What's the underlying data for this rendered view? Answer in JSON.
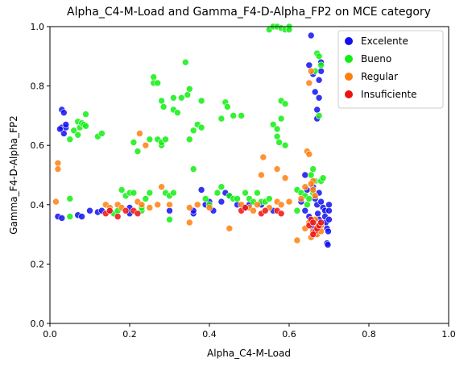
{
  "chart_data": {
    "type": "scatter",
    "title": "Alpha_C4-M-Load and Gamma_F4-D-Alpha_FP2 on MCE category",
    "xlabel": "Alpha_C4-M-Load",
    "ylabel": "Gamma_F4-D-Alpha_FP2",
    "xlim": [
      0,
      1
    ],
    "ylim": [
      0,
      1
    ],
    "xticks": [
      "0.0",
      "0.2",
      "0.4",
      "0.6",
      "0.8",
      "1.0"
    ],
    "yticks": [
      "0.0",
      "0.2",
      "0.4",
      "0.6",
      "0.8",
      "1.0"
    ],
    "grid": false,
    "legend_position": "top-right",
    "series": [
      {
        "name": "Excelente",
        "color": "#1111ee",
        "points": [
          [
            0.02,
            0.36
          ],
          [
            0.03,
            0.66
          ],
          [
            0.03,
            0.72
          ],
          [
            0.035,
            0.71
          ],
          [
            0.04,
            0.66
          ],
          [
            0.035,
            0.64
          ],
          [
            0.025,
            0.655
          ],
          [
            0.04,
            0.67
          ],
          [
            0.03,
            0.355
          ],
          [
            0.07,
            0.365
          ],
          [
            0.08,
            0.36
          ],
          [
            0.1,
            0.38
          ],
          [
            0.12,
            0.375
          ],
          [
            0.13,
            0.38
          ],
          [
            0.15,
            0.38
          ],
          [
            0.2,
            0.37
          ],
          [
            0.2,
            0.39
          ],
          [
            0.3,
            0.38
          ],
          [
            0.36,
            0.37
          ],
          [
            0.36,
            0.38
          ],
          [
            0.38,
            0.45
          ],
          [
            0.39,
            0.4
          ],
          [
            0.4,
            0.41
          ],
          [
            0.41,
            0.38
          ],
          [
            0.43,
            0.41
          ],
          [
            0.44,
            0.44
          ],
          [
            0.45,
            0.43
          ],
          [
            0.47,
            0.4
          ],
          [
            0.49,
            0.39
          ],
          [
            0.5,
            0.4
          ],
          [
            0.53,
            0.4
          ],
          [
            0.56,
            0.38
          ],
          [
            0.63,
            0.41
          ],
          [
            0.64,
            0.5
          ],
          [
            0.645,
            0.45
          ],
          [
            0.65,
            0.87
          ],
          [
            0.655,
            0.97
          ],
          [
            0.66,
            0.84
          ],
          [
            0.665,
            0.78
          ],
          [
            0.67,
            0.72
          ],
          [
            0.67,
            0.69
          ],
          [
            0.675,
            0.82
          ],
          [
            0.675,
            0.76
          ],
          [
            0.68,
            0.85
          ],
          [
            0.68,
            0.88
          ],
          [
            0.66,
            0.46
          ],
          [
            0.665,
            0.42
          ],
          [
            0.67,
            0.4
          ],
          [
            0.672,
            0.37
          ],
          [
            0.675,
            0.35
          ],
          [
            0.68,
            0.41
          ],
          [
            0.685,
            0.39
          ],
          [
            0.69,
            0.38
          ],
          [
            0.69,
            0.36
          ],
          [
            0.692,
            0.34
          ],
          [
            0.695,
            0.32
          ],
          [
            0.695,
            0.27
          ],
          [
            0.697,
            0.265
          ],
          [
            0.698,
            0.31
          ],
          [
            0.7,
            0.35
          ],
          [
            0.7,
            0.38
          ],
          [
            0.7,
            0.4
          ],
          [
            0.66,
            0.32
          ],
          [
            0.665,
            0.3
          ],
          [
            0.67,
            0.31
          ],
          [
            0.655,
            0.34
          ],
          [
            0.64,
            0.38
          ],
          [
            0.65,
            0.36
          ],
          [
            0.675,
            0.44
          ]
        ]
      },
      {
        "name": "Bueno",
        "color": "#11ee11",
        "points": [
          [
            0.05,
            0.36
          ],
          [
            0.05,
            0.42
          ],
          [
            0.05,
            0.62
          ],
          [
            0.06,
            0.65
          ],
          [
            0.07,
            0.68
          ],
          [
            0.07,
            0.635
          ],
          [
            0.075,
            0.66
          ],
          [
            0.08,
            0.675
          ],
          [
            0.085,
            0.67
          ],
          [
            0.09,
            0.665
          ],
          [
            0.09,
            0.705
          ],
          [
            0.12,
            0.63
          ],
          [
            0.13,
            0.64
          ],
          [
            0.16,
            0.37
          ],
          [
            0.17,
            0.38
          ],
          [
            0.18,
            0.45
          ],
          [
            0.19,
            0.43
          ],
          [
            0.2,
            0.44
          ],
          [
            0.21,
            0.44
          ],
          [
            0.21,
            0.61
          ],
          [
            0.22,
            0.58
          ],
          [
            0.23,
            0.38
          ],
          [
            0.23,
            0.39
          ],
          [
            0.24,
            0.42
          ],
          [
            0.25,
            0.44
          ],
          [
            0.25,
            0.62
          ],
          [
            0.26,
            0.83
          ],
          [
            0.26,
            0.81
          ],
          [
            0.27,
            0.81
          ],
          [
            0.27,
            0.62
          ],
          [
            0.28,
            0.6
          ],
          [
            0.28,
            0.61
          ],
          [
            0.28,
            0.75
          ],
          [
            0.285,
            0.73
          ],
          [
            0.29,
            0.62
          ],
          [
            0.29,
            0.44
          ],
          [
            0.3,
            0.35
          ],
          [
            0.3,
            0.43
          ],
          [
            0.31,
            0.44
          ],
          [
            0.31,
            0.72
          ],
          [
            0.31,
            0.76
          ],
          [
            0.32,
            0.71
          ],
          [
            0.33,
            0.76
          ],
          [
            0.34,
            0.88
          ],
          [
            0.345,
            0.77
          ],
          [
            0.35,
            0.79
          ],
          [
            0.35,
            0.62
          ],
          [
            0.36,
            0.52
          ],
          [
            0.36,
            0.65
          ],
          [
            0.37,
            0.67
          ],
          [
            0.38,
            0.66
          ],
          [
            0.38,
            0.75
          ],
          [
            0.39,
            0.42
          ],
          [
            0.4,
            0.4
          ],
          [
            0.42,
            0.44
          ],
          [
            0.43,
            0.69
          ],
          [
            0.43,
            0.46
          ],
          [
            0.44,
            0.745
          ],
          [
            0.445,
            0.73
          ],
          [
            0.45,
            0.43
          ],
          [
            0.46,
            0.7
          ],
          [
            0.46,
            0.42
          ],
          [
            0.47,
            0.42
          ],
          [
            0.48,
            0.7
          ],
          [
            0.49,
            0.44
          ],
          [
            0.5,
            0.42
          ],
          [
            0.51,
            0.41
          ],
          [
            0.52,
            0.44
          ],
          [
            0.53,
            0.41
          ],
          [
            0.54,
            0.41
          ],
          [
            0.55,
            0.42
          ],
          [
            0.56,
            0.67
          ],
          [
            0.57,
            0.655
          ],
          [
            0.57,
            0.63
          ],
          [
            0.575,
            0.61
          ],
          [
            0.58,
            0.69
          ],
          [
            0.58,
            0.75
          ],
          [
            0.59,
            0.74
          ],
          [
            0.59,
            0.6
          ],
          [
            0.55,
            0.99
          ],
          [
            0.56,
            1.0
          ],
          [
            0.57,
            1.0
          ],
          [
            0.58,
            0.995
          ],
          [
            0.59,
            0.99
          ],
          [
            0.6,
            1.0
          ],
          [
            0.6,
            0.99
          ],
          [
            0.62,
            0.38
          ],
          [
            0.62,
            0.45
          ],
          [
            0.63,
            0.44
          ],
          [
            0.64,
            0.43
          ],
          [
            0.645,
            0.4
          ],
          [
            0.65,
            0.42
          ],
          [
            0.655,
            0.5
          ],
          [
            0.66,
            0.52
          ],
          [
            0.665,
            0.48
          ],
          [
            0.665,
            0.85
          ],
          [
            0.67,
            0.91
          ],
          [
            0.675,
            0.9
          ],
          [
            0.675,
            0.7
          ],
          [
            0.68,
            0.87
          ],
          [
            0.68,
            0.48
          ],
          [
            0.685,
            0.49
          ],
          [
            0.66,
            0.44
          ]
        ]
      },
      {
        "name": "Regular",
        "color": "#ff7f0e",
        "points": [
          [
            0.015,
            0.41
          ],
          [
            0.02,
            0.54
          ],
          [
            0.02,
            0.52
          ],
          [
            0.14,
            0.4
          ],
          [
            0.15,
            0.39
          ],
          [
            0.17,
            0.4
          ],
          [
            0.18,
            0.39
          ],
          [
            0.22,
            0.41
          ],
          [
            0.225,
            0.64
          ],
          [
            0.23,
            0.4
          ],
          [
            0.24,
            0.6
          ],
          [
            0.25,
            0.39
          ],
          [
            0.27,
            0.4
          ],
          [
            0.28,
            0.46
          ],
          [
            0.3,
            0.4
          ],
          [
            0.35,
            0.39
          ],
          [
            0.35,
            0.34
          ],
          [
            0.37,
            0.4
          ],
          [
            0.4,
            0.39
          ],
          [
            0.45,
            0.32
          ],
          [
            0.48,
            0.4
          ],
          [
            0.5,
            0.39
          ],
          [
            0.51,
            0.38
          ],
          [
            0.52,
            0.4
          ],
          [
            0.53,
            0.5
          ],
          [
            0.535,
            0.56
          ],
          [
            0.55,
            0.39
          ],
          [
            0.57,
            0.41
          ],
          [
            0.57,
            0.52
          ],
          [
            0.58,
            0.4
          ],
          [
            0.59,
            0.49
          ],
          [
            0.6,
            0.41
          ],
          [
            0.62,
            0.28
          ],
          [
            0.63,
            0.42
          ],
          [
            0.64,
            0.46
          ],
          [
            0.645,
            0.58
          ],
          [
            0.65,
            0.57
          ],
          [
            0.65,
            0.81
          ],
          [
            0.655,
            0.85
          ],
          [
            0.66,
            0.48
          ],
          [
            0.66,
            0.45
          ],
          [
            0.665,
            0.35
          ],
          [
            0.67,
            0.33
          ],
          [
            0.67,
            0.3
          ],
          [
            0.675,
            0.32
          ],
          [
            0.68,
            0.33
          ],
          [
            0.68,
            0.31
          ],
          [
            0.655,
            0.29
          ],
          [
            0.66,
            0.31
          ],
          [
            0.65,
            0.34
          ],
          [
            0.64,
            0.32
          ],
          [
            0.655,
            0.47
          ],
          [
            0.665,
            0.43
          ]
        ]
      },
      {
        "name": "Insuficiente",
        "color": "#ee1111",
        "points": [
          [
            0.14,
            0.37
          ],
          [
            0.15,
            0.38
          ],
          [
            0.17,
            0.36
          ],
          [
            0.19,
            0.38
          ],
          [
            0.21,
            0.38
          ],
          [
            0.22,
            0.37
          ],
          [
            0.48,
            0.38
          ],
          [
            0.49,
            0.39
          ],
          [
            0.53,
            0.37
          ],
          [
            0.54,
            0.38
          ],
          [
            0.57,
            0.38
          ],
          [
            0.58,
            0.37
          ],
          [
            0.65,
            0.33
          ],
          [
            0.655,
            0.35
          ],
          [
            0.66,
            0.34
          ],
          [
            0.665,
            0.31
          ],
          [
            0.67,
            0.32
          ],
          [
            0.675,
            0.33
          ],
          [
            0.68,
            0.34
          ],
          [
            0.66,
            0.3
          ]
        ]
      }
    ]
  }
}
